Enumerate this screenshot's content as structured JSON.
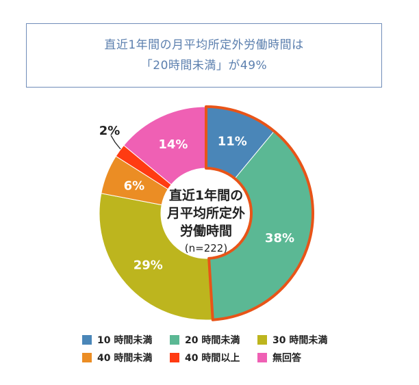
{
  "headline": {
    "line1": "直近1年間の月平均所定外労働時間は",
    "line2": "「20時間未満」が49%"
  },
  "chart_data": {
    "type": "pie",
    "style": "donut",
    "categories": [
      "10 時間未満",
      "20 時間未満",
      "30 時間未満",
      "40 時間未満",
      "40 時間以上",
      "無回答"
    ],
    "values": [
      11,
      38,
      29,
      6,
      2,
      14
    ],
    "value_labels": [
      "11%",
      "38%",
      "29%",
      "6%",
      "2%",
      "14%"
    ],
    "colors": [
      "#4a86b8",
      "#5bb894",
      "#bdb51e",
      "#eb8d24",
      "#ff3b12",
      "#ef60b4"
    ],
    "highlight_color": "#e85418",
    "highlight_indices": [
      0,
      1
    ],
    "center_lines": [
      "直近1年間の",
      "月平均所定外",
      "労働時間"
    ],
    "center_note": "(n=222)",
    "legend_position": "bottom"
  }
}
